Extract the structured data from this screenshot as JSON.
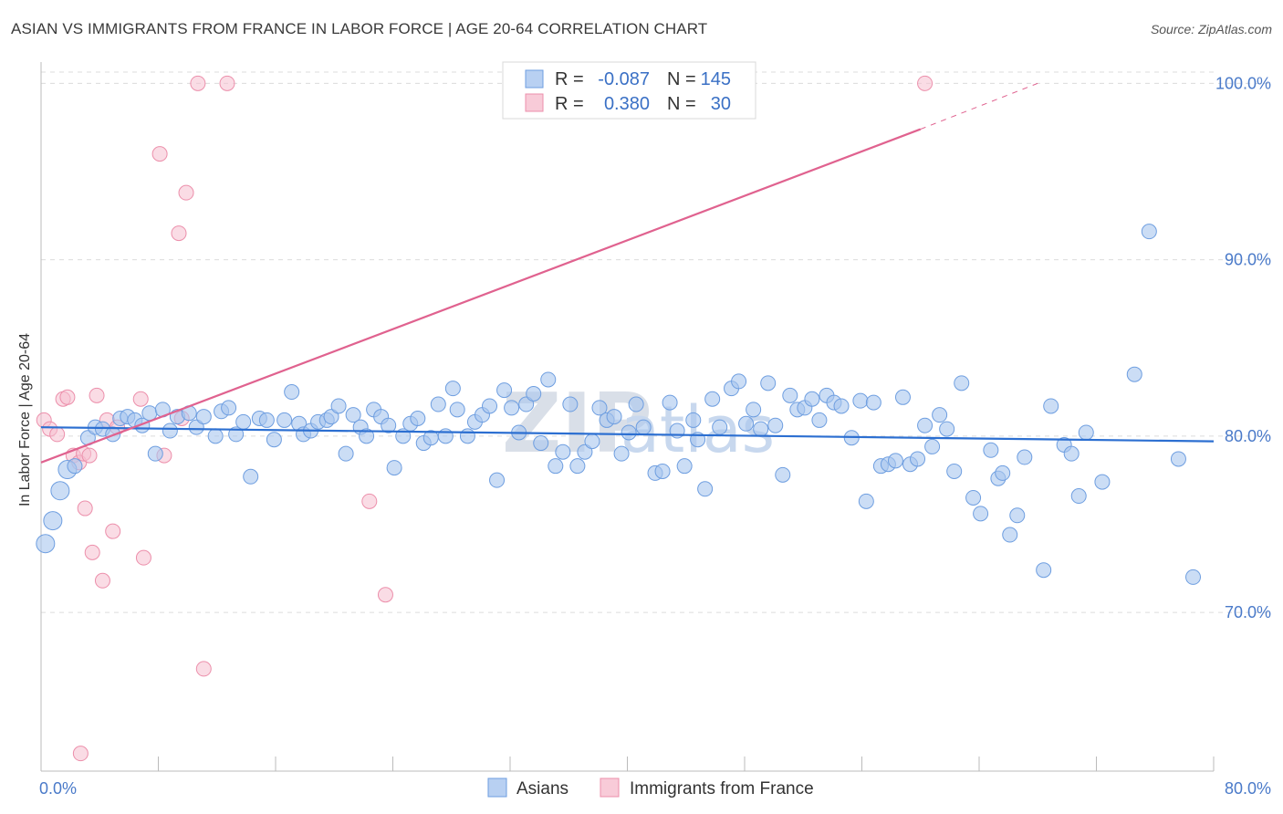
{
  "title": "ASIAN VS IMMIGRANTS FROM FRANCE IN LABOR FORCE | AGE 20-64 CORRELATION CHART",
  "source": "Source: ZipAtlas.com",
  "watermark": {
    "zip": "ZIP",
    "atlas": "atlas"
  },
  "colors": {
    "blue_fill": "#a9c6ee",
    "blue_stroke": "#6e9ee0",
    "blue_line": "#2c6fd1",
    "pink_fill": "#f6c0d0",
    "pink_stroke": "#ec8fab",
    "pink_line": "#e0628f",
    "grid": "#dcdcdc",
    "axis": "#bbbbbb",
    "label": "#4a7ac9"
  },
  "legend": {
    "rows": [
      {
        "r_label": "R =",
        "r_value": "-0.087",
        "n_label": "N =",
        "n_value": "145"
      },
      {
        "r_label": "R =",
        "r_value": "0.380",
        "n_label": "N =",
        "n_value": "30"
      }
    ]
  },
  "bottom_legend": [
    "Asians",
    "Immigrants from France"
  ],
  "chart_data": {
    "type": "scatter",
    "title": "ASIAN VS IMMIGRANTS FROM FRANCE IN LABOR FORCE | AGE 20-64 CORRELATION CHART",
    "xlabel": "",
    "ylabel": "In Labor Force | Age 20-64",
    "xlim": [
      0,
      80
    ],
    "ylim": [
      61,
      101
    ],
    "x_tick_labels": [
      "0.0%",
      "80.0%"
    ],
    "y_ticks": [
      70,
      80,
      90,
      100
    ],
    "y_tick_labels": [
      "70.0%",
      "80.0%",
      "90.0%",
      "100.0%"
    ],
    "series": [
      {
        "name": "Asians",
        "color": "#6e9ee0",
        "r": -0.087,
        "n": 145,
        "trend": {
          "x": [
            0,
            80
          ],
          "y": [
            80.5,
            79.7
          ]
        },
        "points": [
          [
            0.3,
            73.9
          ],
          [
            0.8,
            75.2
          ],
          [
            1.3,
            76.9
          ],
          [
            1.8,
            78.1
          ],
          [
            2.3,
            78.3
          ],
          [
            3.2,
            79.9
          ],
          [
            3.7,
            80.5
          ],
          [
            4.2,
            80.4
          ],
          [
            4.9,
            80.1
          ],
          [
            5.4,
            81.0
          ],
          [
            5.9,
            81.1
          ],
          [
            6.4,
            80.9
          ],
          [
            6.9,
            80.6
          ],
          [
            7.4,
            81.3
          ],
          [
            7.8,
            79.0
          ],
          [
            8.3,
            81.5
          ],
          [
            8.8,
            80.3
          ],
          [
            9.3,
            81.1
          ],
          [
            10.1,
            81.3
          ],
          [
            10.6,
            80.5
          ],
          [
            11.1,
            81.1
          ],
          [
            11.9,
            80.0
          ],
          [
            12.3,
            81.4
          ],
          [
            12.8,
            81.6
          ],
          [
            13.3,
            80.1
          ],
          [
            13.8,
            80.8
          ],
          [
            14.3,
            77.7
          ],
          [
            14.9,
            81.0
          ],
          [
            15.4,
            80.9
          ],
          [
            15.9,
            79.8
          ],
          [
            16.6,
            80.9
          ],
          [
            17.1,
            82.5
          ],
          [
            17.6,
            80.7
          ],
          [
            17.9,
            80.1
          ],
          [
            18.4,
            80.3
          ],
          [
            18.9,
            80.8
          ],
          [
            19.5,
            80.9
          ],
          [
            19.8,
            81.1
          ],
          [
            20.3,
            81.7
          ],
          [
            20.8,
            79.0
          ],
          [
            21.3,
            81.2
          ],
          [
            21.8,
            80.5
          ],
          [
            22.2,
            80.0
          ],
          [
            22.7,
            81.5
          ],
          [
            23.2,
            81.1
          ],
          [
            23.7,
            80.6
          ],
          [
            24.1,
            78.2
          ],
          [
            24.7,
            80.0
          ],
          [
            25.2,
            80.7
          ],
          [
            25.7,
            81.0
          ],
          [
            26.1,
            79.6
          ],
          [
            26.6,
            79.9
          ],
          [
            27.1,
            81.8
          ],
          [
            27.6,
            80.0
          ],
          [
            28.1,
            82.7
          ],
          [
            28.4,
            81.5
          ],
          [
            29.1,
            80.0
          ],
          [
            29.6,
            80.8
          ],
          [
            30.1,
            81.2
          ],
          [
            30.6,
            81.7
          ],
          [
            31.1,
            77.5
          ],
          [
            31.6,
            82.6
          ],
          [
            32.1,
            81.6
          ],
          [
            32.6,
            80.2
          ],
          [
            33.1,
            81.8
          ],
          [
            33.6,
            82.4
          ],
          [
            34.1,
            79.6
          ],
          [
            34.6,
            83.2
          ],
          [
            35.1,
            78.3
          ],
          [
            35.6,
            79.1
          ],
          [
            36.1,
            81.8
          ],
          [
            36.6,
            78.3
          ],
          [
            37.1,
            79.1
          ],
          [
            37.6,
            79.7
          ],
          [
            38.1,
            81.6
          ],
          [
            38.6,
            80.9
          ],
          [
            39.1,
            81.1
          ],
          [
            39.6,
            79.0
          ],
          [
            40.1,
            80.2
          ],
          [
            40.6,
            81.8
          ],
          [
            41.1,
            80.5
          ],
          [
            41.9,
            77.9
          ],
          [
            42.4,
            78.0
          ],
          [
            42.9,
            81.9
          ],
          [
            43.4,
            80.3
          ],
          [
            43.9,
            78.3
          ],
          [
            44.5,
            80.9
          ],
          [
            44.8,
            79.8
          ],
          [
            45.3,
            77.0
          ],
          [
            45.8,
            82.1
          ],
          [
            46.3,
            80.5
          ],
          [
            47.1,
            82.7
          ],
          [
            47.6,
            83.1
          ],
          [
            48.1,
            80.7
          ],
          [
            48.6,
            81.5
          ],
          [
            49.1,
            80.4
          ],
          [
            49.6,
            83.0
          ],
          [
            50.1,
            80.6
          ],
          [
            50.6,
            77.8
          ],
          [
            51.1,
            82.3
          ],
          [
            51.6,
            81.5
          ],
          [
            52.1,
            81.6
          ],
          [
            52.6,
            82.1
          ],
          [
            53.1,
            80.9
          ],
          [
            53.6,
            82.3
          ],
          [
            54.1,
            81.9
          ],
          [
            54.6,
            81.7
          ],
          [
            55.3,
            79.9
          ],
          [
            55.9,
            82.0
          ],
          [
            56.3,
            76.3
          ],
          [
            56.8,
            81.9
          ],
          [
            57.3,
            78.3
          ],
          [
            57.8,
            78.4
          ],
          [
            58.3,
            78.6
          ],
          [
            58.8,
            82.2
          ],
          [
            59.3,
            78.4
          ],
          [
            59.8,
            78.7
          ],
          [
            60.3,
            80.6
          ],
          [
            60.8,
            79.4
          ],
          [
            61.3,
            81.2
          ],
          [
            61.8,
            80.4
          ],
          [
            62.3,
            78.0
          ],
          [
            62.8,
            83.0
          ],
          [
            63.6,
            76.5
          ],
          [
            64.1,
            75.6
          ],
          [
            64.8,
            79.2
          ],
          [
            65.3,
            77.6
          ],
          [
            65.6,
            77.9
          ],
          [
            66.1,
            74.4
          ],
          [
            66.6,
            75.5
          ],
          [
            67.1,
            78.8
          ],
          [
            68.4,
            72.4
          ],
          [
            68.9,
            81.7
          ],
          [
            69.8,
            79.5
          ],
          [
            70.3,
            79.0
          ],
          [
            70.8,
            76.6
          ],
          [
            71.3,
            80.2
          ],
          [
            72.4,
            77.4
          ],
          [
            74.6,
            83.5
          ],
          [
            75.6,
            91.6
          ],
          [
            77.6,
            78.7
          ],
          [
            78.6,
            72.0
          ]
        ]
      },
      {
        "name": "Immigrants from France",
        "color": "#ec8fab",
        "r": 0.38,
        "n": 30,
        "trend": {
          "x": [
            0,
            60
          ],
          "y": [
            78.5,
            97.4
          ],
          "dashed_to": {
            "x": 68,
            "y": 100
          }
        },
        "points": [
          [
            0.2,
            80.9
          ],
          [
            0.6,
            80.4
          ],
          [
            1.1,
            80.1
          ],
          [
            1.5,
            82.1
          ],
          [
            1.8,
            82.2
          ],
          [
            2.2,
            78.9
          ],
          [
            2.6,
            78.5
          ],
          [
            2.9,
            79.0
          ],
          [
            3.0,
            75.9
          ],
          [
            3.3,
            78.9
          ],
          [
            3.5,
            73.4
          ],
          [
            3.8,
            82.3
          ],
          [
            4.2,
            71.8
          ],
          [
            4.5,
            80.9
          ],
          [
            4.9,
            74.6
          ],
          [
            5.2,
            80.5
          ],
          [
            6.8,
            82.1
          ],
          [
            7.0,
            73.1
          ],
          [
            8.1,
            96.0
          ],
          [
            8.4,
            78.9
          ],
          [
            9.4,
            91.5
          ],
          [
            9.6,
            81.0
          ],
          [
            9.9,
            93.8
          ],
          [
            10.7,
            100.0
          ],
          [
            11.1,
            66.8
          ],
          [
            12.7,
            100.0
          ],
          [
            22.4,
            76.3
          ],
          [
            23.5,
            71.0
          ],
          [
            60.3,
            100.0
          ],
          [
            2.7,
            62.0
          ]
        ]
      }
    ]
  }
}
